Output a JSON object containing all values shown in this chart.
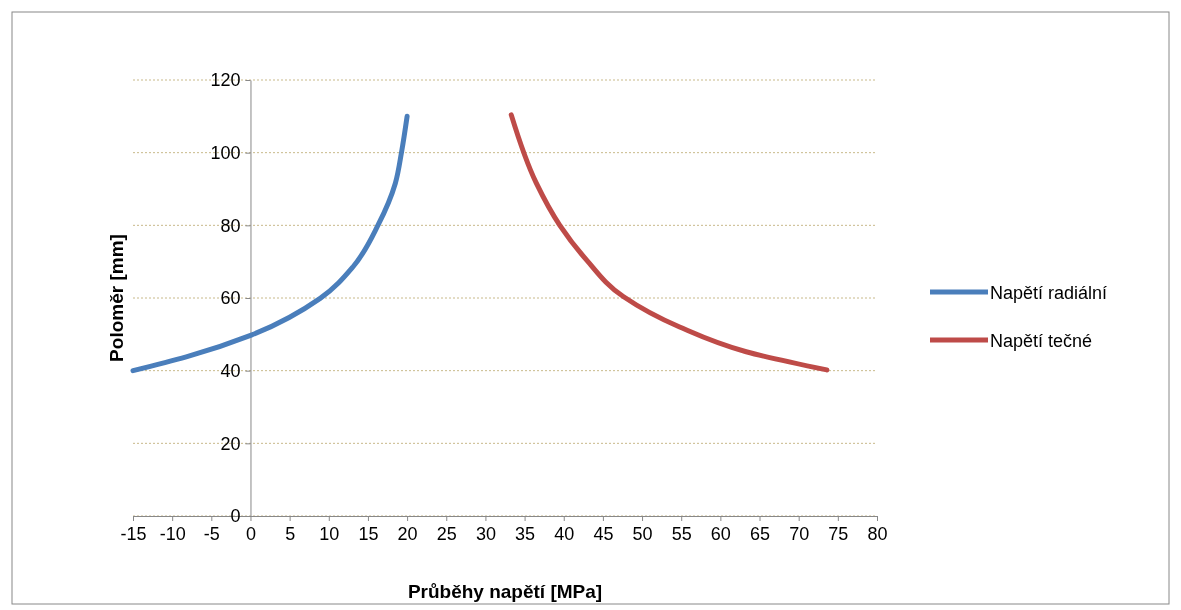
{
  "chart_data": {
    "type": "line",
    "xlabel": "Průběhy napětí [MPa]",
    "ylabel": "Poloměr [mm]",
    "xlim": [
      -15,
      80
    ],
    "xticks": [
      -15,
      -10,
      -5,
      0,
      5,
      10,
      15,
      20,
      25,
      30,
      35,
      40,
      45,
      50,
      55,
      60,
      65,
      70,
      75,
      80
    ],
    "ylim": [
      0,
      120
    ],
    "yticks": [
      0,
      20,
      40,
      60,
      80,
      100,
      120
    ],
    "grid": "y",
    "legend": "right",
    "marker": "none",
    "line_style": "solid",
    "series": [
      {
        "name": "Napětí radiální",
        "color": "#4a7ebb",
        "x": [
          -15,
          -8.2,
          0.1,
          8.9,
          13.1,
          16.3,
          18.5,
          19.3,
          20
        ],
        "values": [
          40,
          43.8,
          49.8,
          59.9,
          68.6,
          80.1,
          91.6,
          100.3,
          110
        ]
      },
      {
        "name": "Napětí tečné",
        "color": "#be4b48",
        "x": [
          33.3,
          36.5,
          39.5,
          42.9,
          47.6,
          54.8,
          63.3,
          73.6
        ],
        "values": [
          110.4,
          91.6,
          80,
          70.5,
          60.4,
          52,
          45.2,
          40.2
        ]
      }
    ]
  }
}
